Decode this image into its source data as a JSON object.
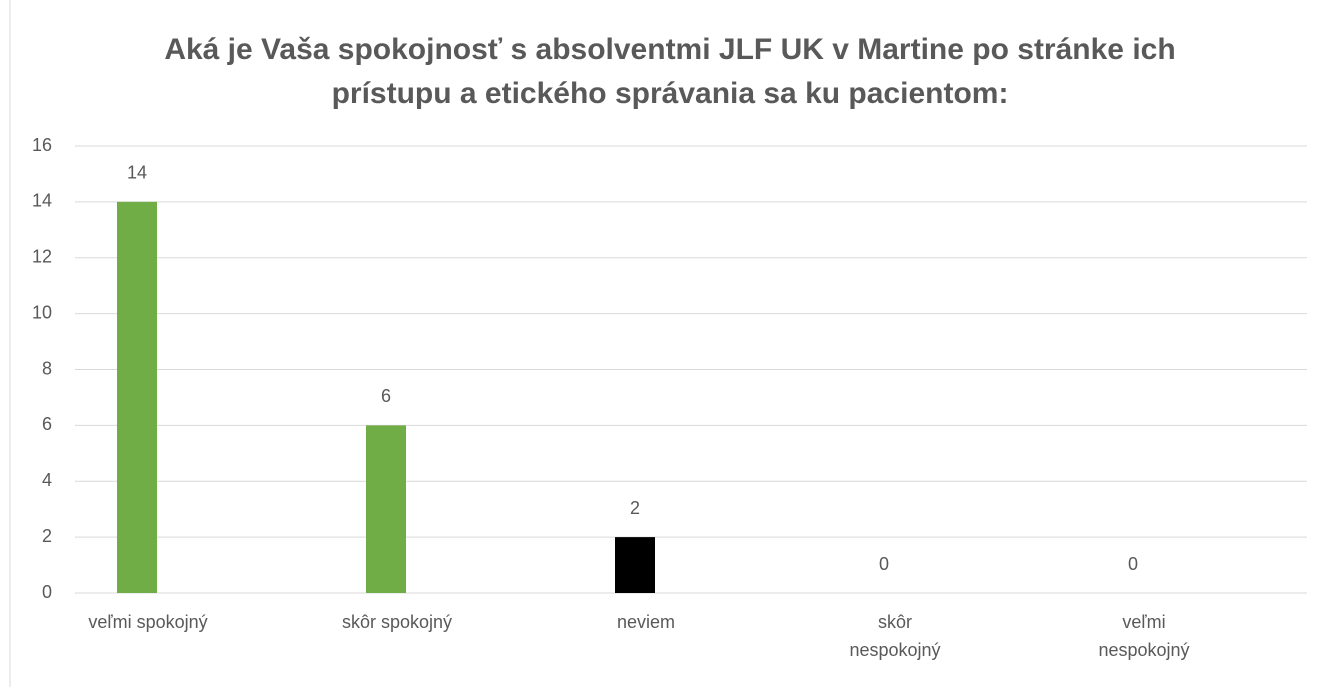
{
  "chart_data": {
    "type": "bar",
    "title": "Aká je Vaša spokojnosť s absolventmi JLF UK v Martine po stránke ich prístupu a etického správania sa ku pacientom:",
    "categories": [
      "veľmi spokojný",
      "skôr spokojný",
      "neviem",
      "skôr nespokojný",
      "veľmi nespokojný"
    ],
    "values": [
      14,
      6,
      2,
      0,
      0
    ],
    "colors": [
      "#70ad47",
      "#70ad47",
      "#000000",
      "#70ad47",
      "#70ad47"
    ],
    "ylim": [
      0,
      16
    ],
    "yticks": [
      0,
      2,
      4,
      6,
      8,
      10,
      12,
      14,
      16
    ],
    "grid": true
  }
}
